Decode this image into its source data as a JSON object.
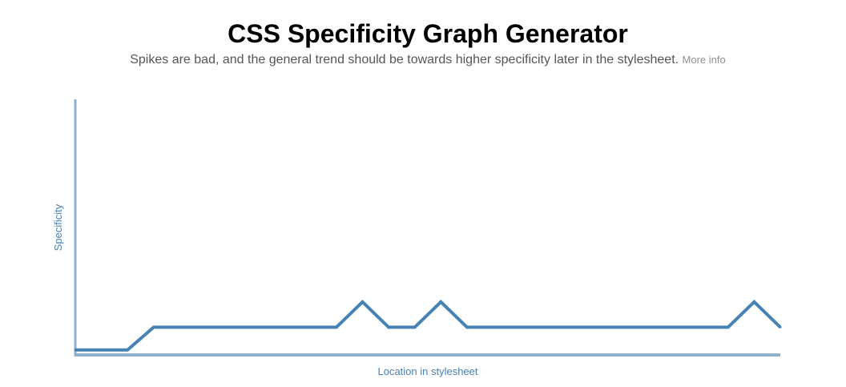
{
  "header": {
    "title": "CSS Specificity Graph Generator",
    "subtitle": "Spikes are bad, and the general trend should be towards higher specificity later in the stylesheet.",
    "more_info_label": "More info"
  },
  "colors": {
    "line": "#4682b4",
    "axis": "#8eb1cd"
  },
  "chart_data": {
    "type": "line",
    "title": "",
    "xlabel": "Location in stylesheet",
    "ylabel": "Specificity",
    "grid": false,
    "x": [
      0,
      1,
      2,
      3,
      4,
      5,
      6,
      7,
      8,
      9,
      10,
      11,
      12,
      13,
      14,
      15,
      16,
      17,
      18,
      19,
      20,
      21,
      22,
      23,
      24,
      25,
      26,
      27
    ],
    "series": [
      {
        "values": [
          1,
          1,
          1,
          10,
          10,
          10,
          10,
          10,
          10,
          10,
          10,
          20,
          10,
          10,
          20,
          10,
          10,
          10,
          10,
          10,
          10,
          10,
          10,
          10,
          10,
          10,
          20,
          10
        ]
      }
    ],
    "xlim": [
      0,
      27
    ],
    "ylim": [
      0,
      100
    ]
  }
}
